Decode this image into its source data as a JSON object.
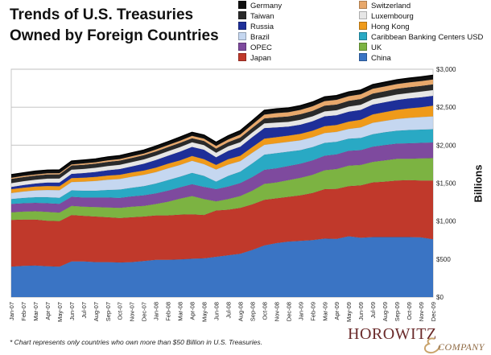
{
  "title": "Trends of U.S. Treasuries Owned by Foreign Countries",
  "footnote": "* Chart represents only countries who own more than $50 Billion in U.S. Treasuries.",
  "logo": {
    "main": "HOROWITZ",
    "sub": "COMPANY"
  },
  "chart_data": {
    "type": "area",
    "stacked": true,
    "ylabel": "Billions",
    "ylim": [
      0,
      3000
    ],
    "yticks": [
      "$0",
      "$500",
      "$1,000",
      "$1,500",
      "$2,000",
      "$2,500",
      "$3,000"
    ],
    "y_axis_position": "right",
    "grid": true,
    "legend_position": "top-right",
    "x": [
      "Jan-07",
      "Feb-07",
      "Mar-07",
      "Apr-07",
      "May-07",
      "Jun-07",
      "Jul-07",
      "Aug-07",
      "Sep-07",
      "Oct-07",
      "Nov-07",
      "Dec-07",
      "Jan-08",
      "Feb-08",
      "Mar-08",
      "Apr-08",
      "May-08",
      "Jun-08",
      "Jul-08",
      "Aug-08",
      "Sep-08",
      "Oct-08",
      "Nov-08",
      "Dec-08",
      "Jan-09",
      "Feb-09",
      "Mar-09",
      "Apr-09",
      "May-09",
      "Jun-09",
      "Jul-09",
      "Aug-09",
      "Sep-09",
      "Oct-09",
      "Nov-09",
      "Dec-09"
    ],
    "xtick_labels": [
      "Jan-07",
      "Feb-07",
      "Mar-07",
      "Apr-07",
      "May-07",
      "Jun-07",
      "Jul-07",
      "Aug-07",
      "Sep-07",
      "Oct-07",
      "Nov-07",
      "Dec-07",
      "Jan-08",
      "Feb-08",
      "Mar-08",
      "Apr-08",
      "May-08",
      "Jun-08",
      "Jul-08",
      "Aug-08",
      "Sep-08",
      "Oct-08",
      "Nov-08",
      "Dec-08",
      "Jan-09",
      "Feb-09",
      "Mar-09",
      "Apr-09",
      "May-09",
      "Jun-09",
      "Jul-09",
      "Aug-09",
      "Sep-09",
      "Oct-09",
      "Nov-09",
      "Dec-09"
    ],
    "series": [
      {
        "name": "China",
        "color": "#3a74c4",
        "values": [
          400,
          410,
          415,
          405,
          400,
          470,
          470,
          460,
          460,
          455,
          460,
          475,
          490,
          490,
          495,
          505,
          510,
          530,
          550,
          570,
          620,
          680,
          710,
          730,
          740,
          750,
          770,
          765,
          800,
          780,
          790,
          790,
          790,
          790,
          785,
          760
        ]
      },
      {
        "name": "Japan",
        "color": "#c0392b",
        "values": [
          615,
          610,
          605,
          600,
          600,
          610,
          600,
          600,
          590,
          585,
          590,
          585,
          585,
          585,
          590,
          585,
          570,
          610,
          600,
          605,
          600,
          600,
          590,
          590,
          600,
          620,
          650,
          660,
          660,
          690,
          720,
          730,
          745,
          750,
          750,
          775
        ]
      },
      {
        "name": "UK",
        "color": "#7cb342",
        "values": [
          100,
          105,
          110,
          115,
          112,
          120,
          120,
          125,
          130,
          135,
          140,
          140,
          150,
          180,
          210,
          240,
          210,
          120,
          140,
          155,
          180,
          210,
          210,
          220,
          230,
          240,
          250,
          260,
          270,
          270,
          270,
          280,
          285,
          280,
          290,
          295
        ]
      },
      {
        "name": "OPEC",
        "color": "#7e4a9e",
        "values": [
          110,
          110,
          110,
          115,
          115,
          120,
          120,
          125,
          130,
          130,
          135,
          140,
          140,
          145,
          150,
          155,
          160,
          160,
          165,
          170,
          180,
          185,
          185,
          185,
          185,
          190,
          190,
          195,
          195,
          195,
          200,
          200,
          200,
          205,
          205,
          205
        ]
      },
      {
        "name": "Caribbean Banking Centers USD",
        "color": "#29a9c4",
        "values": [
          65,
          70,
          75,
          80,
          80,
          85,
          90,
          90,
          100,
          110,
          115,
          120,
          130,
          140,
          140,
          150,
          145,
          100,
          140,
          150,
          180,
          200,
          200,
          190,
          180,
          175,
          170,
          165,
          160,
          160,
          165,
          170,
          170,
          175,
          175,
          175
        ]
      },
      {
        "name": "Brazil",
        "color": "#c5d7f0",
        "values": [
          80,
          85,
          90,
          95,
          100,
          110,
          120,
          130,
          135,
          140,
          145,
          150,
          150,
          155,
          155,
          160,
          155,
          160,
          150,
          140,
          140,
          130,
          130,
          130,
          130,
          130,
          130,
          130,
          130,
          140,
          150,
          150,
          155,
          160,
          165,
          170
        ]
      },
      {
        "name": "Hong Kong",
        "color": "#ef9a1a",
        "values": [
          50,
          50,
          50,
          52,
          52,
          52,
          52,
          52,
          55,
          55,
          55,
          55,
          60,
          60,
          60,
          62,
          65,
          60,
          70,
          70,
          75,
          80,
          80,
          80,
          85,
          85,
          90,
          90,
          95,
          100,
          110,
          115,
          120,
          125,
          130,
          140
        ]
      },
      {
        "name": "Russia",
        "color": "#1e2f99",
        "values": [
          30,
          35,
          40,
          45,
          50,
          55,
          60,
          65,
          70,
          75,
          80,
          90,
          100,
          105,
          115,
          120,
          125,
          100,
          110,
          120,
          130,
          140,
          130,
          120,
          120,
          125,
          130,
          130,
          130,
          130,
          130,
          130,
          130,
          130,
          130,
          130
        ]
      },
      {
        "name": "Luxembourg",
        "color": "#e6e6e6",
        "values": [
          50,
          50,
          50,
          52,
          52,
          55,
          55,
          55,
          55,
          57,
          57,
          58,
          58,
          60,
          60,
          60,
          60,
          60,
          60,
          60,
          62,
          62,
          62,
          62,
          65,
          65,
          65,
          65,
          68,
          68,
          70,
          70,
          72,
          72,
          75,
          75
        ]
      },
      {
        "name": "Taiwan",
        "color": "#2a2a2a",
        "values": [
          55,
          55,
          55,
          55,
          55,
          55,
          55,
          55,
          55,
          55,
          55,
          55,
          55,
          55,
          55,
          55,
          55,
          55,
          55,
          60,
          60,
          65,
          70,
          72,
          72,
          72,
          75,
          75,
          75,
          75,
          75,
          75,
          75,
          76,
          76,
          76
        ]
      },
      {
        "name": "Switzerland",
        "color": "#e8a86b",
        "values": [
          15,
          15,
          15,
          15,
          15,
          15,
          18,
          18,
          20,
          20,
          22,
          22,
          25,
          25,
          28,
          30,
          30,
          35,
          35,
          40,
          45,
          50,
          55,
          55,
          58,
          60,
          60,
          62,
          62,
          62,
          62,
          63,
          63,
          63,
          63,
          64
        ]
      },
      {
        "name": "Germany",
        "color": "#101010",
        "values": [
          40,
          40,
          42,
          42,
          42,
          42,
          43,
          43,
          45,
          45,
          45,
          45,
          45,
          45,
          47,
          47,
          47,
          47,
          48,
          50,
          50,
          55,
          55,
          55,
          55,
          55,
          55,
          55,
          55,
          55,
          55,
          55,
          55,
          55,
          55,
          56
        ]
      }
    ]
  }
}
